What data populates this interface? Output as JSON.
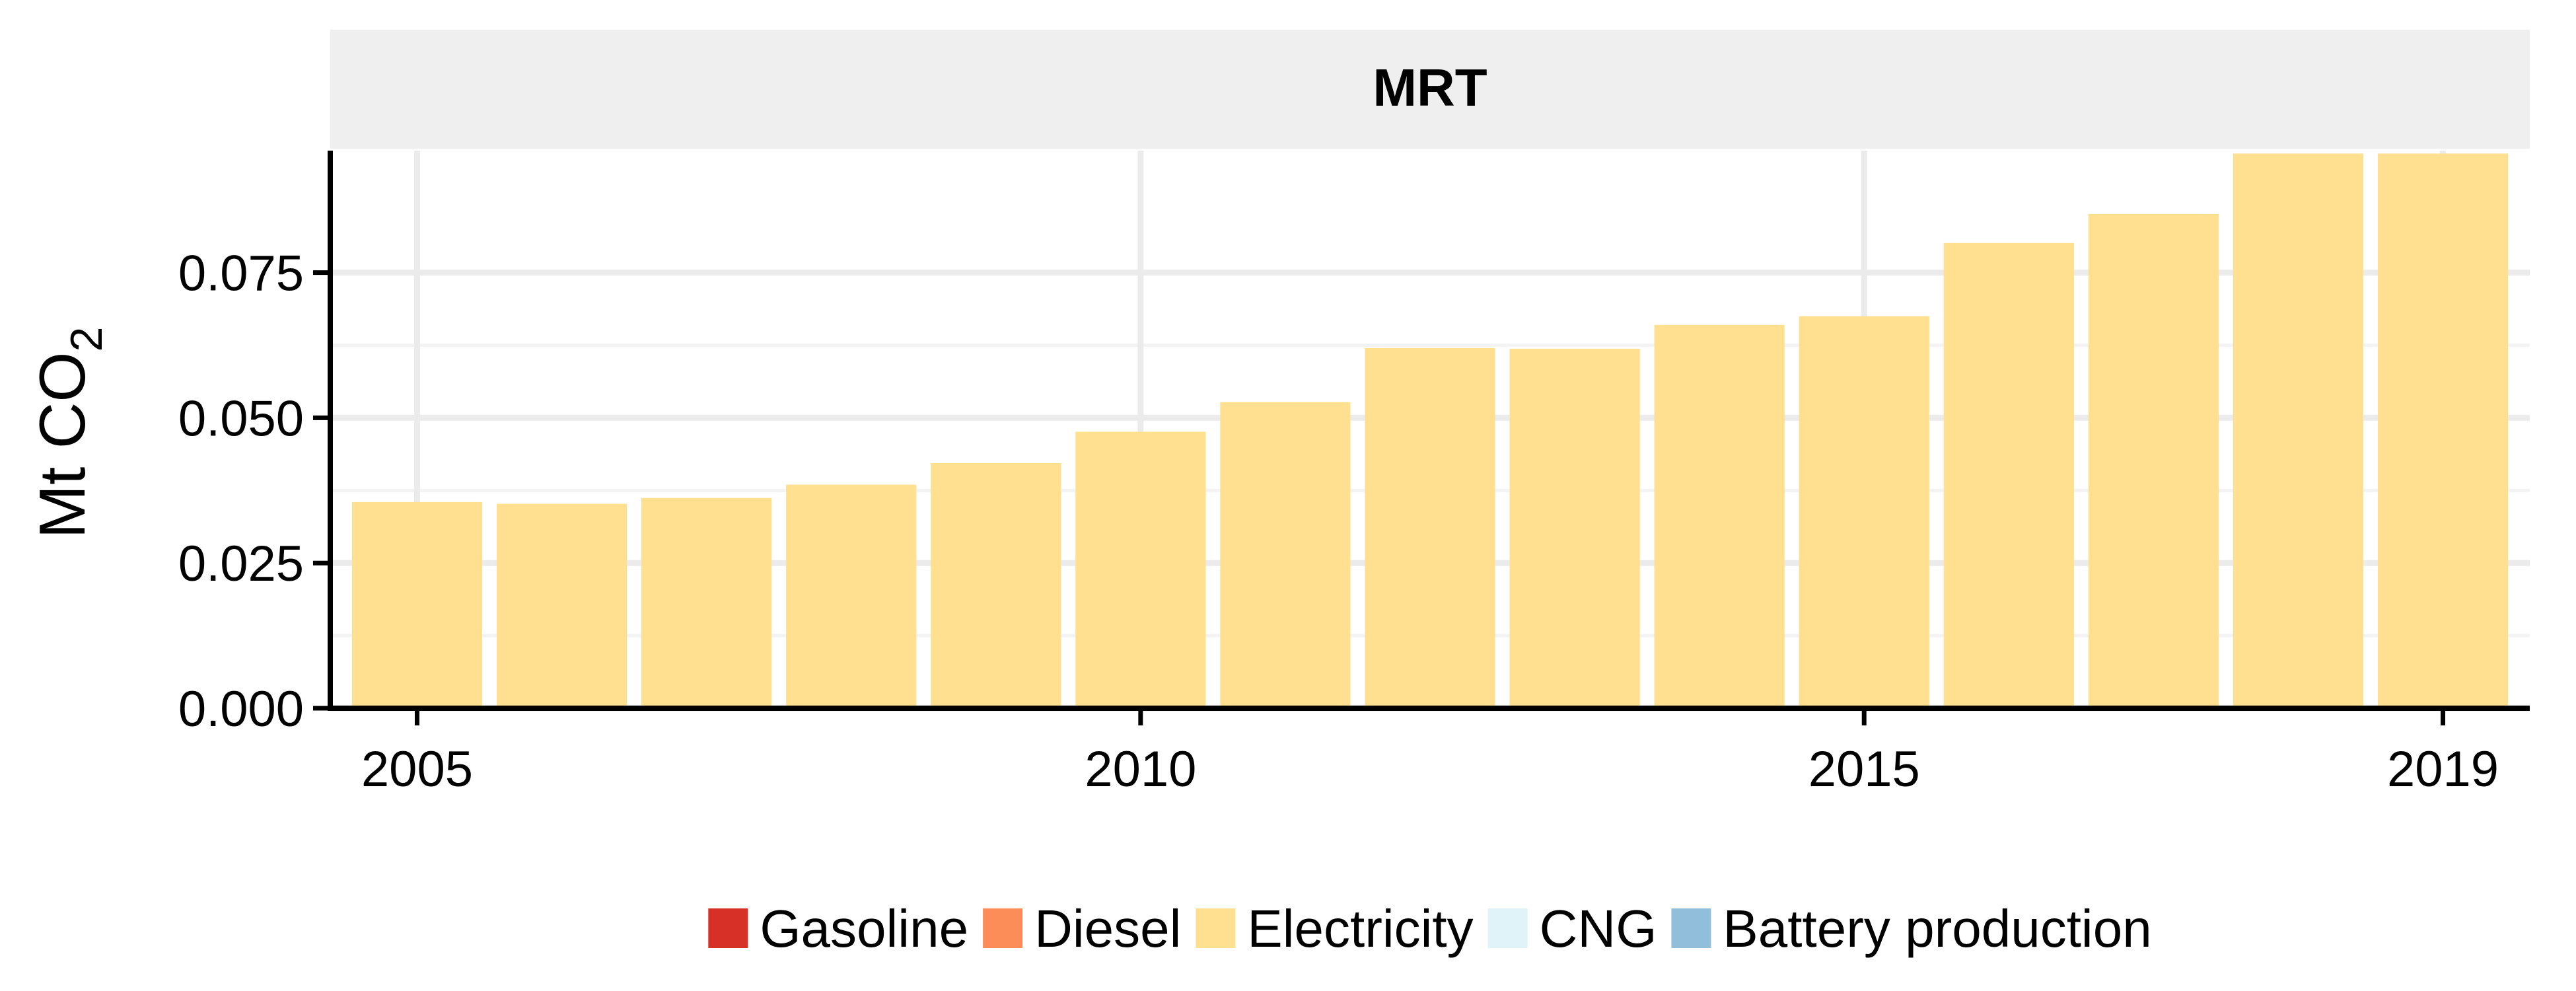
{
  "chart_data": {
    "type": "bar",
    "facet_title": "MRT",
    "ylabel": {
      "main": "Mt CO",
      "subscript": "2"
    },
    "xlabel": "",
    "x": [
      2005,
      2006,
      2007,
      2008,
      2009,
      2010,
      2011,
      2012,
      2013,
      2014,
      2015,
      2016,
      2017,
      2018,
      2019
    ],
    "x_ticks": [
      2005,
      2010,
      2015,
      2019
    ],
    "x_tick_labels": [
      "2005",
      "2010",
      "2015",
      "2019"
    ],
    "y_ticks": [
      0,
      0.025,
      0.05,
      0.075
    ],
    "y_tick_labels": [
      "0.000",
      "0.025",
      "0.050",
      "0.075"
    ],
    "ylim": [
      0,
      0.096
    ],
    "xlim": [
      2004.4,
      2019.6
    ],
    "grid": true,
    "legend_position": "bottom",
    "series": [
      {
        "name": "Gasoline",
        "color": "#d73027",
        "values": [
          0,
          0,
          0,
          0,
          0,
          0,
          0,
          0,
          0,
          0,
          0,
          0,
          0,
          0,
          0
        ]
      },
      {
        "name": "Diesel",
        "color": "#fc8d59",
        "values": [
          0,
          0,
          0,
          0,
          0,
          0,
          0,
          0,
          0,
          0,
          0,
          0,
          0,
          0,
          0
        ]
      },
      {
        "name": "Electricity",
        "color": "#fee090",
        "values": [
          0.0355,
          0.0352,
          0.0362,
          0.0385,
          0.0422,
          0.0476,
          0.0527,
          0.062,
          0.0619,
          0.066,
          0.0675,
          0.0801,
          0.0851,
          0.0955,
          0.0955
        ]
      },
      {
        "name": "CNG",
        "color": "#e0f3f8",
        "values": [
          0,
          0,
          0,
          0,
          0,
          0,
          0,
          0,
          0,
          0,
          0,
          0,
          0,
          0,
          0
        ]
      },
      {
        "name": "Battery production",
        "color": "#91bfdb",
        "values": [
          0,
          0,
          0,
          0,
          0,
          0,
          0,
          0,
          0,
          0,
          0,
          0,
          0,
          0,
          0
        ]
      }
    ]
  }
}
